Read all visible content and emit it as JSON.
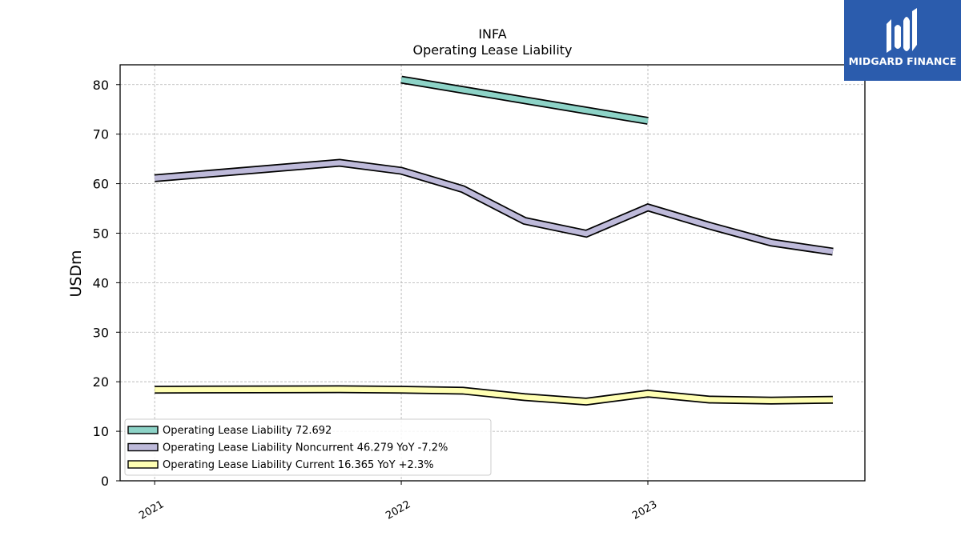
{
  "logo": {
    "text": "MIDGARD FINANCE",
    "color": "#2b5cad",
    "icon": "midgard-m-icon"
  },
  "chart_data": {
    "type": "line",
    "title": "INFA",
    "subtitle": "Operating Lease Liability",
    "xlabel": "",
    "ylabel": "USDm",
    "xlim": [
      2020.86,
      2023.88
    ],
    "ylim": [
      0,
      84
    ],
    "xticks": [
      2021,
      2022,
      2023
    ],
    "xtick_labels": [
      "2021",
      "2022",
      "2023"
    ],
    "yticks": [
      0,
      10,
      20,
      30,
      40,
      50,
      60,
      70,
      80
    ],
    "grid": true,
    "legend_position": "lower-left",
    "series": [
      {
        "name": "Operating Lease Liability",
        "legend_label": "Operating Lease Liability  72.692",
        "color": "#8dd3c7",
        "x": [
          2022.0,
          2023.0
        ],
        "y": [
          81.0,
          72.692
        ]
      },
      {
        "name": "Operating Lease Liability Noncurrent",
        "legend_label": "Operating Lease Liability Noncurrent  46.279 YoY -7.2%",
        "color": "#bebada",
        "x": [
          2021.0,
          2021.75,
          2022.0,
          2022.25,
          2022.5,
          2022.75,
          2023.0,
          2023.25,
          2023.5,
          2023.75
        ],
        "y": [
          61.1,
          64.2,
          62.6,
          58.9,
          52.5,
          49.9,
          55.2,
          51.5,
          48.1,
          46.279
        ]
      },
      {
        "name": "Operating Lease Liability Current",
        "legend_label": "Operating Lease Liability Current  16.365 YoY +2.3%",
        "color": "#ffffb3",
        "x": [
          2021.0,
          2021.75,
          2022.0,
          2022.25,
          2022.5,
          2022.75,
          2023.0,
          2023.25,
          2023.5,
          2023.75
        ],
        "y": [
          18.4,
          18.5,
          18.4,
          18.2,
          16.9,
          16.0,
          17.6,
          16.4,
          16.2,
          16.365
        ]
      }
    ]
  }
}
